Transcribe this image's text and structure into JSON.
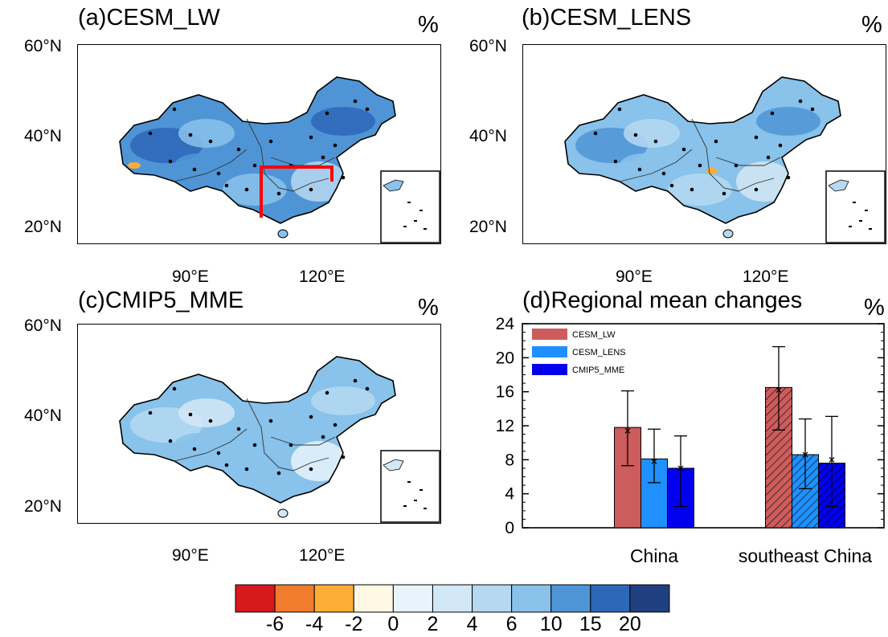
{
  "maps": [
    {
      "id": "a",
      "title": "(a)CESM_LW",
      "unit": "%",
      "lat_labels": [
        "60°N",
        "40°N",
        "20°N"
      ],
      "lon_labels": [
        "90°E",
        "120°E"
      ],
      "has_region_box": true,
      "intensity": "strong"
    },
    {
      "id": "b",
      "title": "(b)CESM_LENS",
      "unit": "%",
      "lat_labels": [
        "60°N",
        "40°N",
        "20°N"
      ],
      "lon_labels": [
        "90°E",
        "120°E"
      ],
      "has_region_box": false,
      "intensity": "medium"
    },
    {
      "id": "c",
      "title": "(c)CMIP5_MME",
      "unit": "%",
      "lat_labels": [
        "60°N",
        "40°N",
        "20°N"
      ],
      "lon_labels": [
        "90°E",
        "120°E"
      ],
      "has_region_box": false,
      "intensity": "weak"
    }
  ],
  "chart_data": {
    "type": "bar",
    "title": "(d)Regional mean changes",
    "unit": "%",
    "categories": [
      "China",
      "southeast China"
    ],
    "ylim": [
      0,
      24
    ],
    "yticks": [
      "0",
      "4",
      "8",
      "12",
      "16",
      "20",
      "24"
    ],
    "legend_position": "top-left",
    "series": [
      {
        "name": "CESM_LW",
        "color": "#cd5c5c",
        "values": [
          11.8,
          16.5
        ],
        "error_low": [
          7.3,
          11.5
        ],
        "error_high": [
          16.1,
          21.3
        ],
        "median": [
          11.4,
          16.2
        ]
      },
      {
        "name": "CESM_LENS",
        "color": "#1e90ff",
        "values": [
          8.1,
          8.6
        ],
        "error_low": [
          5.3,
          4.6
        ],
        "error_high": [
          11.6,
          12.8
        ],
        "median": [
          7.8,
          8.6
        ]
      },
      {
        "name": "CMIP5_MME",
        "color": "#0000ee",
        "values": [
          7.0,
          7.6
        ],
        "error_low": [
          2.5,
          2.5
        ],
        "error_high": [
          10.8,
          13.1
        ],
        "median": [
          7.0,
          8.0
        ]
      }
    ],
    "hatched_category": "southeast China"
  },
  "colorbar": {
    "labels": [
      "-6",
      "-4",
      "-2",
      "0",
      "2",
      "4",
      "6",
      "10",
      "15",
      "20"
    ],
    "colors": [
      "#d7191c",
      "#f07c2c",
      "#fbad35",
      "#fff8e5",
      "#e8f3fb",
      "#d3e8f6",
      "#b6d9f1",
      "#89c2ea",
      "#4f95d6",
      "#2d67b9",
      "#1f3f80"
    ]
  }
}
